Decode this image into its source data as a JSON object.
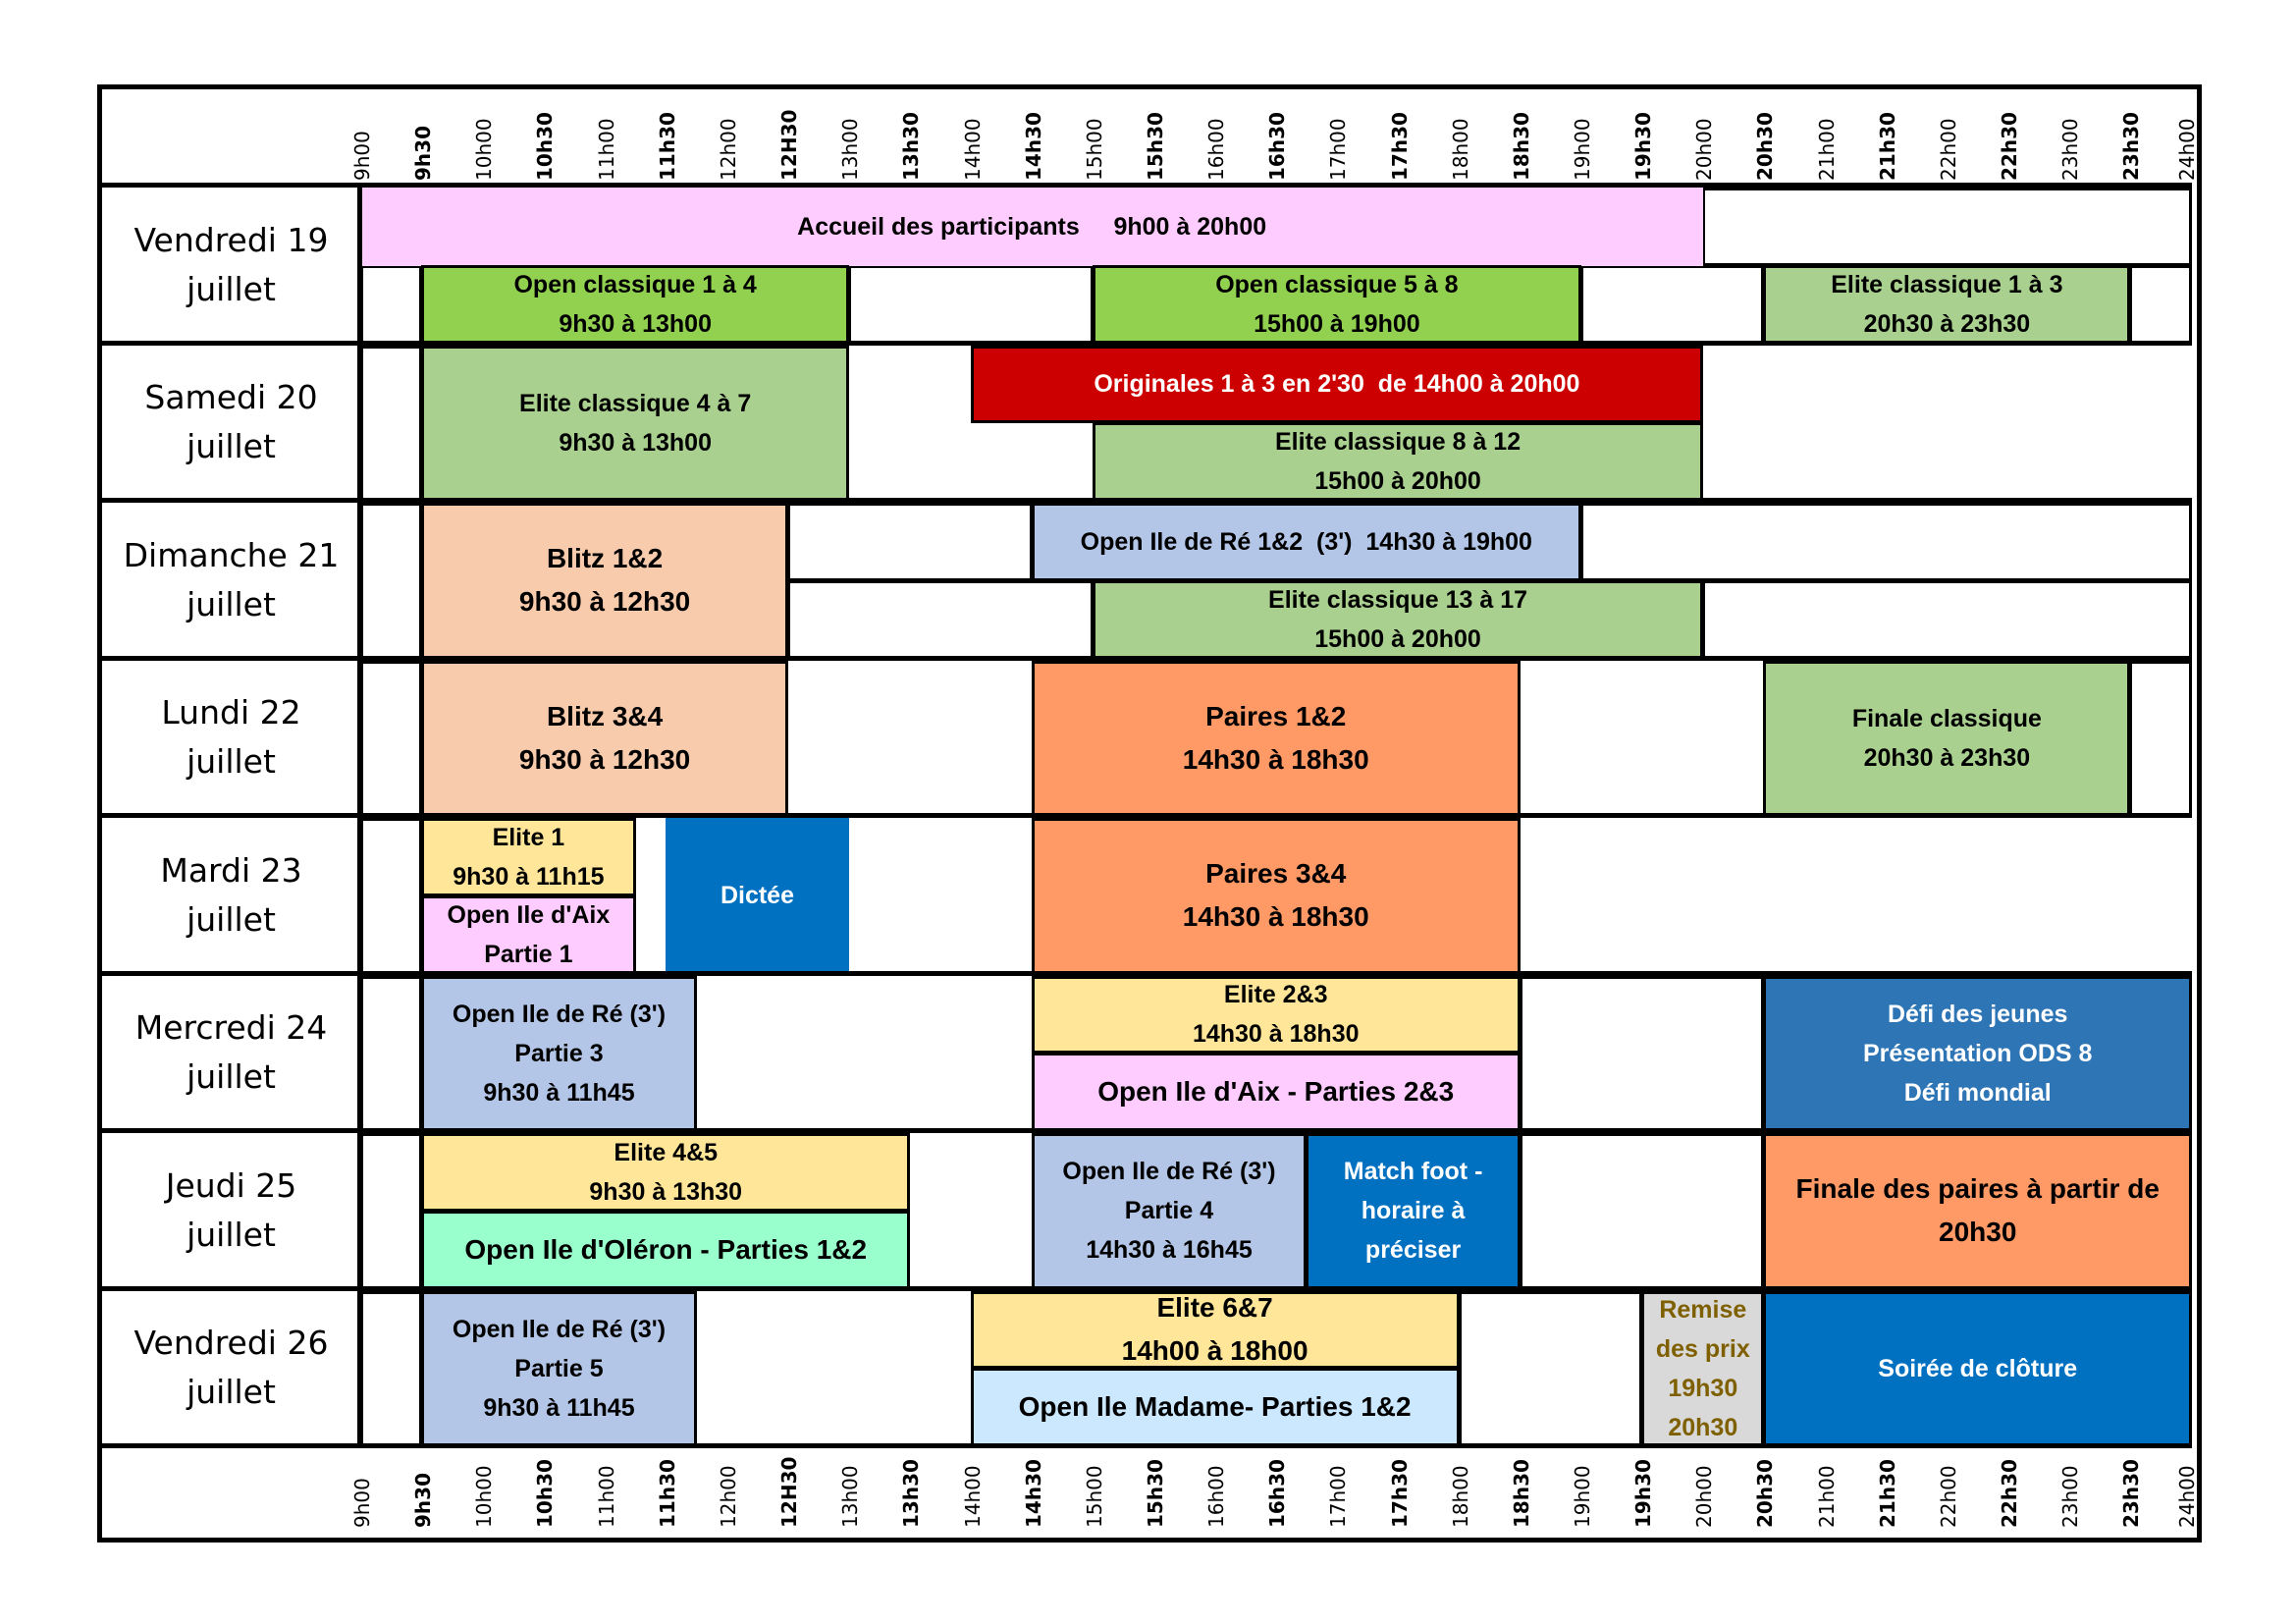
{
  "schedule": {
    "time_ticks": [
      {
        "label": "9h00",
        "bold": false
      },
      {
        "label": "9h30",
        "bold": true
      },
      {
        "label": "10h00",
        "bold": false
      },
      {
        "label": "10h30",
        "bold": true
      },
      {
        "label": "11h00",
        "bold": false
      },
      {
        "label": "11h30",
        "bold": true
      },
      {
        "label": "12h00",
        "bold": false
      },
      {
        "label": "12H30",
        "bold": true
      },
      {
        "label": "13h00",
        "bold": false
      },
      {
        "label": "13h30",
        "bold": true
      },
      {
        "label": "14h00",
        "bold": false
      },
      {
        "label": "14h30",
        "bold": true
      },
      {
        "label": "15h00",
        "bold": false
      },
      {
        "label": "15h30",
        "bold": true
      },
      {
        "label": "16h00",
        "bold": false
      },
      {
        "label": "16h30",
        "bold": true
      },
      {
        "label": "17h00",
        "bold": false
      },
      {
        "label": "17h30",
        "bold": true
      },
      {
        "label": "18h00",
        "bold": false
      },
      {
        "label": "18h30",
        "bold": true
      },
      {
        "label": "19h00",
        "bold": false
      },
      {
        "label": "19h30",
        "bold": true
      },
      {
        "label": "20h00",
        "bold": false
      },
      {
        "label": "20h30",
        "bold": true
      },
      {
        "label": "21h00",
        "bold": false
      },
      {
        "label": "21h30",
        "bold": true
      },
      {
        "label": "22h00",
        "bold": false
      },
      {
        "label": "22h30",
        "bold": true
      },
      {
        "label": "23h00",
        "bold": false
      },
      {
        "label": "23h30",
        "bold": true
      },
      {
        "label": "24h00",
        "bold": false
      }
    ],
    "colors": {
      "pink": "#FFCCFF",
      "green_bright": "#92D050",
      "green_soft": "#A9D08E",
      "red": "#CC0000",
      "peach": "#F8CBAD",
      "lavender": "#B4C6E7",
      "orange": "#FF9966",
      "yellow": "#FFE699",
      "blue": "#0070C0",
      "steel_blue": "#2E75B6",
      "mint": "#99FFCC",
      "light_blue": "#CCE8FF",
      "grey": "#D9D9D9",
      "gold_text": "#7F6000"
    },
    "days": [
      {
        "line1": "Vendredi 19",
        "line2": "juillet",
        "events": [
          {
            "lines": [
              "Accueil des participants     9h00 à 20h00"
            ],
            "start": 0,
            "end": 22,
            "v": "top",
            "bg": "#FFCCFF",
            "fg": "#000000",
            "border": false
          },
          {
            "lines": [
              "Open classique 1 à 4",
              "9h30 à 13h00"
            ],
            "start": 1,
            "end": 8,
            "v": "bottom",
            "bg": "#92D050",
            "fg": "#000000"
          },
          {
            "lines": [
              "Open classique 5 à 8",
              "15h00 à 19h00"
            ],
            "start": 12,
            "end": 20,
            "v": "bottom",
            "bg": "#92D050",
            "fg": "#000000"
          },
          {
            "lines": [
              "Elite classique 1 à 3",
              "20h30 à 23h30"
            ],
            "start": 23,
            "end": 29,
            "v": "bottom",
            "bg": "#A9D08E",
            "fg": "#000000"
          }
        ],
        "gaps": [
          {
            "start": 0,
            "end": 1,
            "v": "bottom"
          },
          {
            "start": 8,
            "end": 12,
            "v": "bottom"
          },
          {
            "start": 20,
            "end": 23,
            "v": "bottom"
          },
          {
            "start": 29,
            "end": 30,
            "v": "bottom"
          },
          {
            "start": 22,
            "end": 30,
            "v": "top"
          }
        ]
      },
      {
        "line1": "Samedi 20",
        "line2": "juillet",
        "events": [
          {
            "lines": [
              "Elite classique 4 à 7",
              "9h30 à 13h00"
            ],
            "start": 1,
            "end": 8,
            "v": "full",
            "bg": "#A9D08E",
            "fg": "#000000"
          },
          {
            "lines": [
              "Originales 1 à 3 en 2'30  de 14h00 à 20h00"
            ],
            "start": 10,
            "end": 22,
            "v": "top",
            "bg": "#CC0000",
            "fg": "#FFFFFF"
          },
          {
            "lines": [
              "Elite classique 8 à 12",
              "15h00 à 20h00"
            ],
            "start": 12,
            "end": 22,
            "v": "bottom",
            "bg": "#A9D08E",
            "fg": "#000000"
          }
        ],
        "gaps": [
          {
            "start": 0,
            "end": 1,
            "v": "full"
          }
        ]
      },
      {
        "line1": "Dimanche 21",
        "line2": "juillet",
        "events": [
          {
            "lines": [
              "Blitz 1&2",
              "9h30 à 12h30"
            ],
            "start": 1,
            "end": 7,
            "v": "full",
            "bg": "#F8CBAD",
            "fg": "#000000",
            "size": "big"
          },
          {
            "lines": [
              "Open Ile de Ré 1&2  (3')  14h30 à 19h00"
            ],
            "start": 11,
            "end": 20,
            "v": "top",
            "bg": "#B4C6E7",
            "fg": "#000000"
          },
          {
            "lines": [
              "Elite classique 13 à 17",
              "15h00 à 20h00"
            ],
            "start": 12,
            "end": 22,
            "v": "bottom",
            "bg": "#A9D08E",
            "fg": "#000000"
          }
        ],
        "gaps": [
          {
            "start": 0,
            "end": 1,
            "v": "full"
          },
          {
            "start": 7,
            "end": 11,
            "v": "top"
          },
          {
            "start": 20,
            "end": 30,
            "v": "top"
          },
          {
            "start": 7,
            "end": 12,
            "v": "bottom"
          },
          {
            "start": 22,
            "end": 30,
            "v": "bottom"
          }
        ]
      },
      {
        "line1": "Lundi 22",
        "line2": "juillet",
        "events": [
          {
            "lines": [
              "Blitz 3&4",
              "9h30 à 12h30"
            ],
            "start": 1,
            "end": 7,
            "v": "full",
            "bg": "#F8CBAD",
            "fg": "#000000",
            "size": "big"
          },
          {
            "lines": [
              "Paires 1&2",
              "14h30 à 18h30"
            ],
            "start": 11,
            "end": 19,
            "v": "full",
            "bg": "#FF9966",
            "fg": "#000000",
            "size": "big"
          },
          {
            "lines": [
              "Finale classique",
              "20h30 à 23h30"
            ],
            "start": 23,
            "end": 29,
            "v": "full",
            "bg": "#A9D08E",
            "fg": "#000000"
          }
        ],
        "gaps": [
          {
            "start": 0,
            "end": 1,
            "v": "full"
          },
          {
            "start": 29,
            "end": 30,
            "v": "full"
          }
        ]
      },
      {
        "line1": "Mardi 23",
        "line2": "juillet",
        "events": [
          {
            "lines": [
              "Elite 1",
              "9h30 à 11h15"
            ],
            "start": 1,
            "end": 4.5,
            "v": "top",
            "bg": "#FFE699",
            "fg": "#000000"
          },
          {
            "lines": [
              "Open Ile d'Aix",
              "Partie 1"
            ],
            "start": 1,
            "end": 4.5,
            "v": "bottom",
            "bg": "#FFCCFF",
            "fg": "#000000"
          },
          {
            "lines": [
              "Dictée"
            ],
            "start": 5,
            "end": 8,
            "v": "full",
            "bg": "#0070C0",
            "fg": "#FFFFFF",
            "border": false
          },
          {
            "lines": [
              "Paires 3&4",
              "14h30 à 18h30"
            ],
            "start": 11,
            "end": 19,
            "v": "full",
            "bg": "#FF9966",
            "fg": "#000000",
            "size": "big"
          }
        ],
        "gaps": [
          {
            "start": 0,
            "end": 1,
            "v": "full"
          }
        ]
      },
      {
        "line1": "Mercredi 24",
        "line2": "juillet",
        "events": [
          {
            "lines": [
              "Open Ile de Ré (3')",
              "Partie 3",
              "9h30 à 11h45"
            ],
            "start": 1,
            "end": 5.5,
            "v": "full",
            "bg": "#B4C6E7",
            "fg": "#000000"
          },
          {
            "lines": [
              "Elite 2&3",
              "14h30 à 18h30"
            ],
            "start": 11,
            "end": 19,
            "v": "top",
            "bg": "#FFE699",
            "fg": "#000000"
          },
          {
            "lines": [
              "Open Ile d'Aix - Parties 2&3"
            ],
            "start": 11,
            "end": 19,
            "v": "bottom",
            "bg": "#FFCCFF",
            "fg": "#000000",
            "size": "big"
          },
          {
            "lines": [
              "Défi des jeunes",
              "Présentation ODS 8",
              "Défi mondial"
            ],
            "start": 23,
            "end": 30,
            "v": "full",
            "bg": "#2E75B6",
            "fg": "#FFFFFF"
          }
        ],
        "gaps": [
          {
            "start": 0,
            "end": 1,
            "v": "full"
          },
          {
            "start": 19,
            "end": 23,
            "v": "full"
          }
        ]
      },
      {
        "line1": "Jeudi 25",
        "line2": "juillet",
        "events": [
          {
            "lines": [
              "Elite 4&5",
              "9h30 à 13h30"
            ],
            "start": 1,
            "end": 9,
            "v": "top",
            "bg": "#FFE699",
            "fg": "#000000"
          },
          {
            "lines": [
              "Open Ile d'Oléron - Parties 1&2"
            ],
            "start": 1,
            "end": 9,
            "v": "bottom",
            "bg": "#99FFCC",
            "fg": "#000000",
            "size": "big"
          },
          {
            "lines": [
              "Open Ile de Ré (3')",
              "Partie 4",
              "14h30 à 16h45"
            ],
            "start": 11,
            "end": 15.5,
            "v": "full",
            "bg": "#B4C6E7",
            "fg": "#000000"
          },
          {
            "lines": [
              "Match foot -",
              "horaire à",
              "préciser"
            ],
            "start": 15.5,
            "end": 19,
            "v": "full",
            "bg": "#0070C0",
            "fg": "#FFFFFF"
          },
          {
            "lines": [
              "Finale des paires à partir de",
              "20h30"
            ],
            "start": 23,
            "end": 30,
            "v": "full",
            "bg": "#FF9966",
            "fg": "#000000",
            "size": "big"
          }
        ],
        "gaps": [
          {
            "start": 0,
            "end": 1,
            "v": "full"
          },
          {
            "start": 19,
            "end": 23,
            "v": "full"
          }
        ]
      },
      {
        "line1": "Vendredi 26",
        "line2": "juillet",
        "events": [
          {
            "lines": [
              "Open Ile de Ré (3')",
              "Partie 5",
              "9h30 à 11h45"
            ],
            "start": 1,
            "end": 5.5,
            "v": "full",
            "bg": "#B4C6E7",
            "fg": "#000000"
          },
          {
            "lines": [
              "Elite 6&7",
              "14h00 à 18h00"
            ],
            "start": 10,
            "end": 18,
            "v": "top",
            "bg": "#FFE699",
            "fg": "#000000",
            "size": "big"
          },
          {
            "lines": [
              "Open Ile Madame- Parties 1&2"
            ],
            "start": 10,
            "end": 18,
            "v": "bottom",
            "bg": "#CCE8FF",
            "fg": "#000000",
            "size": "big"
          },
          {
            "lines": [
              "Remise",
              "des prix",
              "19h30",
              "20h30"
            ],
            "start": 21,
            "end": 23,
            "v": "full",
            "bg": "#D9D9D9",
            "fg": "#7F6000"
          },
          {
            "lines": [
              "Soirée de clôture"
            ],
            "start": 23,
            "end": 30,
            "v": "full",
            "bg": "#0070C0",
            "fg": "#FFFFFF"
          }
        ],
        "gaps": [
          {
            "start": 0,
            "end": 1,
            "v": "full"
          },
          {
            "start": 18,
            "end": 21,
            "v": "full"
          }
        ]
      }
    ]
  }
}
